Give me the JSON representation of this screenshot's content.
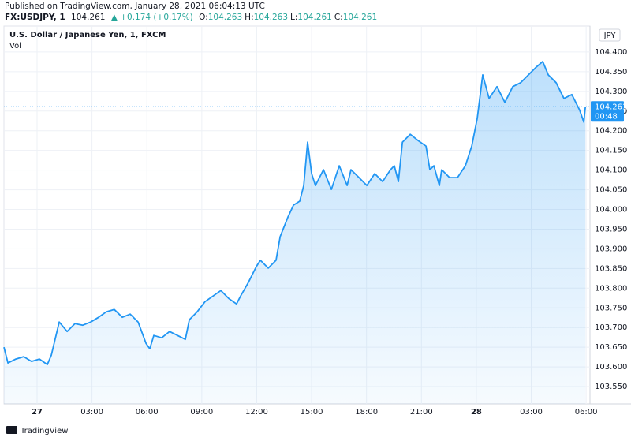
{
  "header": {
    "published": "Published on TradingView.com, January 28, 2021 06:04:13 UTC",
    "symbol": "FX:USDJPY, 1",
    "last": 104.261,
    "change": "▲ +0.174 (+0.17%)",
    "ohlc": [
      {
        "label": "O:",
        "value": 104.263
      },
      {
        "label": "H:",
        "value": 104.263
      },
      {
        "label": "L:",
        "value": 104.261
      },
      {
        "label": "C:",
        "value": 104.261
      }
    ]
  },
  "chart_data": {
    "type": "area",
    "title": "U.S. Dollar / Japanese Yen, 1, FXCM",
    "subtitle": "Vol",
    "y_unit": "JPY",
    "color": "#2196f3",
    "grid": true,
    "price_tag": 104.261,
    "countdown": "00:48",
    "x": [
      -1.81,
      -1.59,
      -1.16,
      -0.73,
      -0.3,
      0.13,
      0.56,
      0.78,
      1.21,
      1.64,
      2.07,
      2.5,
      2.93,
      3.36,
      3.79,
      4.22,
      4.66,
      5.09,
      5.52,
      5.95,
      6.16,
      6.38,
      6.81,
      7.24,
      7.67,
      8.1,
      8.32,
      8.75,
      9.18,
      9.61,
      10.04,
      10.47,
      10.9,
      11.12,
      11.55,
      11.98,
      12.2,
      12.63,
      13.06,
      13.28,
      13.71,
      14.01,
      14.35,
      14.57,
      14.78,
      15.0,
      15.21,
      15.65,
      16.08,
      16.51,
      16.94,
      17.15,
      17.59,
      18.02,
      18.45,
      18.88,
      19.31,
      19.52,
      19.74,
      19.96,
      20.39,
      20.82,
      21.25,
      21.46,
      21.68,
      21.98,
      22.11,
      22.54,
      22.97,
      23.4,
      23.75,
      24.05,
      24.35,
      24.7,
      25.13,
      25.56,
      25.99,
      26.42,
      26.85,
      27.28,
      27.63,
      27.93,
      28.36,
      28.79,
      29.22,
      29.65,
      29.87,
      29.96
    ],
    "values": [
      103.65,
      103.61,
      103.62,
      103.626,
      103.614,
      103.62,
      103.606,
      103.63,
      103.714,
      103.69,
      103.71,
      103.706,
      103.714,
      103.726,
      103.74,
      103.746,
      103.726,
      103.734,
      103.714,
      103.66,
      103.646,
      103.68,
      103.674,
      103.69,
      103.68,
      103.67,
      103.72,
      103.74,
      103.766,
      103.78,
      103.794,
      103.774,
      103.76,
      103.78,
      103.815,
      103.855,
      103.871,
      103.851,
      103.871,
      103.931,
      103.981,
      104.011,
      104.021,
      104.061,
      104.171,
      104.091,
      104.061,
      104.101,
      104.051,
      104.111,
      104.061,
      104.101,
      104.081,
      104.061,
      104.091,
      104.071,
      104.101,
      104.111,
      104.071,
      104.171,
      104.191,
      104.175,
      104.161,
      104.101,
      104.111,
      104.061,
      104.101,
      104.081,
      104.081,
      104.111,
      104.161,
      104.232,
      104.342,
      104.282,
      104.312,
      104.272,
      104.312,
      104.322,
      104.342,
      104.362,
      104.376,
      104.342,
      104.322,
      104.282,
      104.292,
      104.252,
      104.222,
      104.261
    ],
    "xlim": [
      -1.81,
      30.21
    ],
    "xticks": [
      {
        "value": 0,
        "label": "27"
      },
      {
        "value": 3,
        "label": "03:00"
      },
      {
        "value": 6,
        "label": "06:00"
      },
      {
        "value": 9,
        "label": "09:00"
      },
      {
        "value": 12,
        "label": "12:00"
      },
      {
        "value": 15,
        "label": "15:00"
      },
      {
        "value": 18,
        "label": "18:00"
      },
      {
        "value": 21,
        "label": "21:00"
      },
      {
        "value": 24,
        "label": "28"
      },
      {
        "value": 27,
        "label": "03:00"
      },
      {
        "value": 30,
        "label": "06:00"
      }
    ],
    "ylim": [
      103.506,
      104.466
    ],
    "yticks": [
      {
        "value": 103.55,
        "label": "103.550"
      },
      {
        "value": 103.6,
        "label": "103.600"
      },
      {
        "value": 103.65,
        "label": "103.650"
      },
      {
        "value": 103.7,
        "label": "103.700"
      },
      {
        "value": 103.75,
        "label": "103.750"
      },
      {
        "value": 103.8,
        "label": "103.800"
      },
      {
        "value": 103.85,
        "label": "103.850"
      },
      {
        "value": 103.9,
        "label": "103.900"
      },
      {
        "value": 103.95,
        "label": "103.950"
      },
      {
        "value": 104.0,
        "label": "104.000"
      },
      {
        "value": 104.05,
        "label": "104.050"
      },
      {
        "value": 104.1,
        "label": "104.100"
      },
      {
        "value": 104.15,
        "label": "104.150"
      },
      {
        "value": 104.2,
        "label": "104.200"
      },
      {
        "value": 104.25,
        "label": "104.250"
      },
      {
        "value": 104.3,
        "label": "104.300"
      },
      {
        "value": 104.35,
        "label": "104.350"
      },
      {
        "value": 104.4,
        "label": "104.400"
      }
    ]
  },
  "footer": {
    "brand": "TradingView"
  }
}
